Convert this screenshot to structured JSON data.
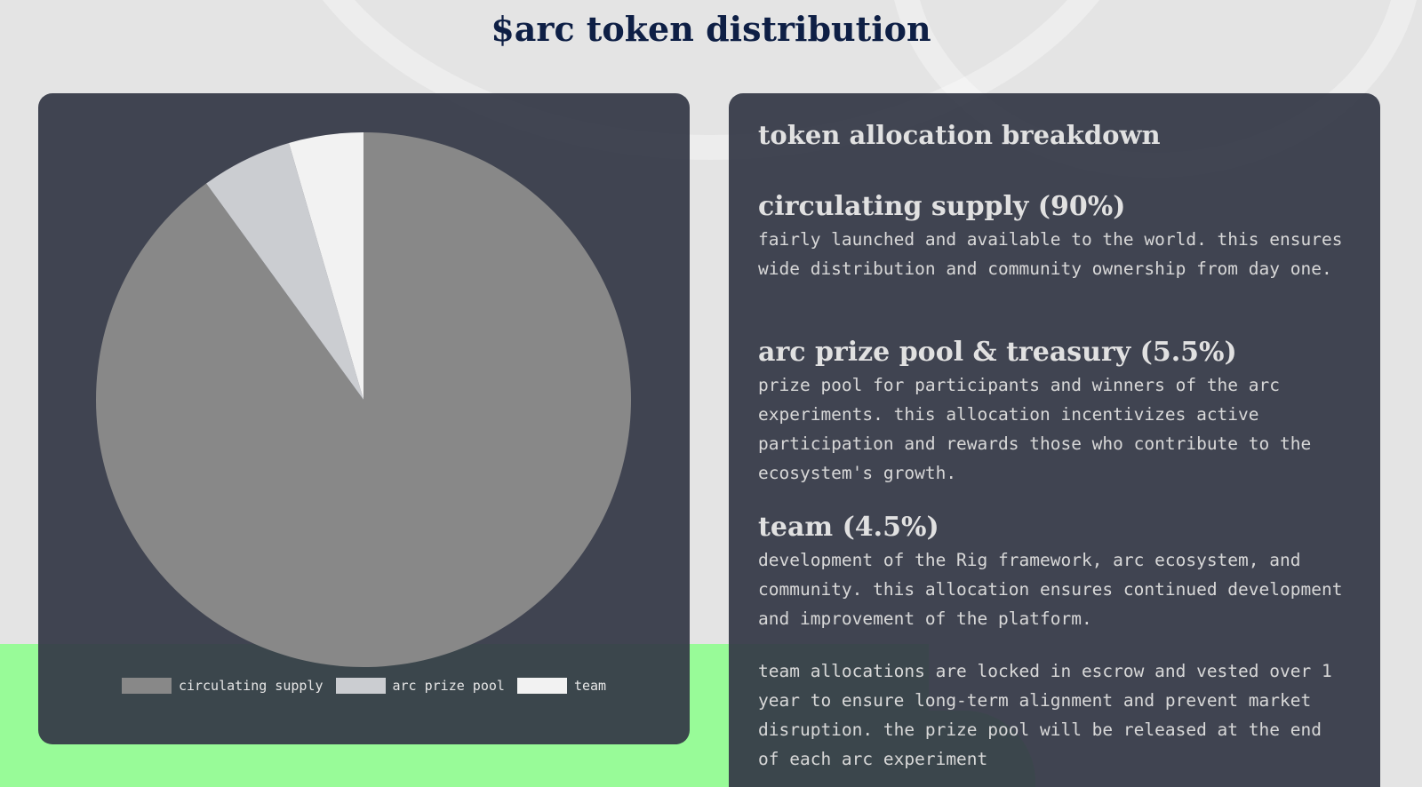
{
  "title": "$arc token distribution",
  "chart_data": {
    "type": "pie",
    "categories": [
      "circulating supply",
      "arc prize pool",
      "team"
    ],
    "values": [
      90,
      5.5,
      4.5
    ],
    "colors": [
      "#888888",
      "#cbcdd1",
      "#f2f2f2"
    ],
    "start": "top",
    "direction": "clockwise",
    "legend": "bottom"
  },
  "breakdown": {
    "heading": "token allocation breakdown",
    "sections": [
      {
        "title": "circulating supply (90%)",
        "text": "fairly launched and available to the world. this ensures wide distribution and community ownership from day one."
      },
      {
        "title": "arc prize pool & treasury (5.5%)",
        "text": "prize pool for participants and winners of the arc experiments. this allocation incentivizes active participation and rewards those who contribute to the ecosystem's growth."
      },
      {
        "title": "team (4.5%)",
        "text": "development of the Rig framework, arc ecosystem, and community. this allocation ensures continued development and improvement of the platform."
      }
    ],
    "note": "team allocations are locked in escrow and vested over 1 year to ensure long-term alignment and prevent market disruption. the prize pool will be released at the end of each arc experiment"
  }
}
